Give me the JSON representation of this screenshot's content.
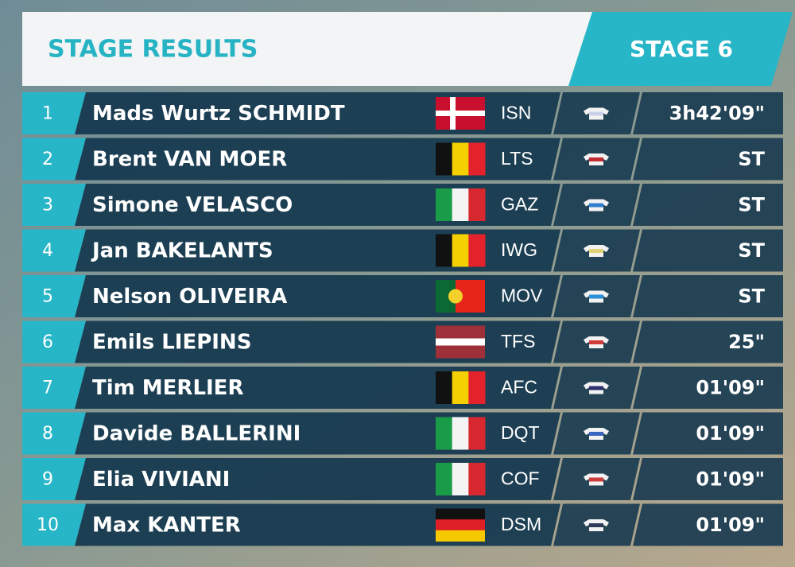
{
  "header": {
    "title": "STAGE RESULTS",
    "stage": "STAGE 6"
  },
  "rows": [
    {
      "rank": 1,
      "name": "Mads Wurtz SCHMIDT",
      "team": "ISN",
      "time": "3h42'09\""
    },
    {
      "rank": 2,
      "name": "Brent VAN MOER",
      "team": "LTS",
      "time": "ST"
    },
    {
      "rank": 3,
      "name": "Simone VELASCO",
      "team": "GAZ",
      "time": "ST"
    },
    {
      "rank": 4,
      "name": "Jan BAKELANTS",
      "team": "IWG",
      "time": "ST"
    },
    {
      "rank": 5,
      "name": "Nelson OLIVEIRA",
      "team": "MOV",
      "time": "ST"
    },
    {
      "rank": 6,
      "name": "Emils LIEPINS",
      "team": "TFS",
      "time": "25\""
    },
    {
      "rank": 7,
      "name": "Tim MERLIER",
      "team": "AFC",
      "time": "01'09\""
    },
    {
      "rank": 8,
      "name": "Davide BALLERINI",
      "team": "DQT",
      "time": "01'09\""
    },
    {
      "rank": 9,
      "name": "Elia VIVIANI",
      "team": "COF",
      "time": "01'09\""
    },
    {
      "rank": 10,
      "name": "Max KANTER",
      "team": "DSM",
      "time": "01'09\""
    }
  ]
}
